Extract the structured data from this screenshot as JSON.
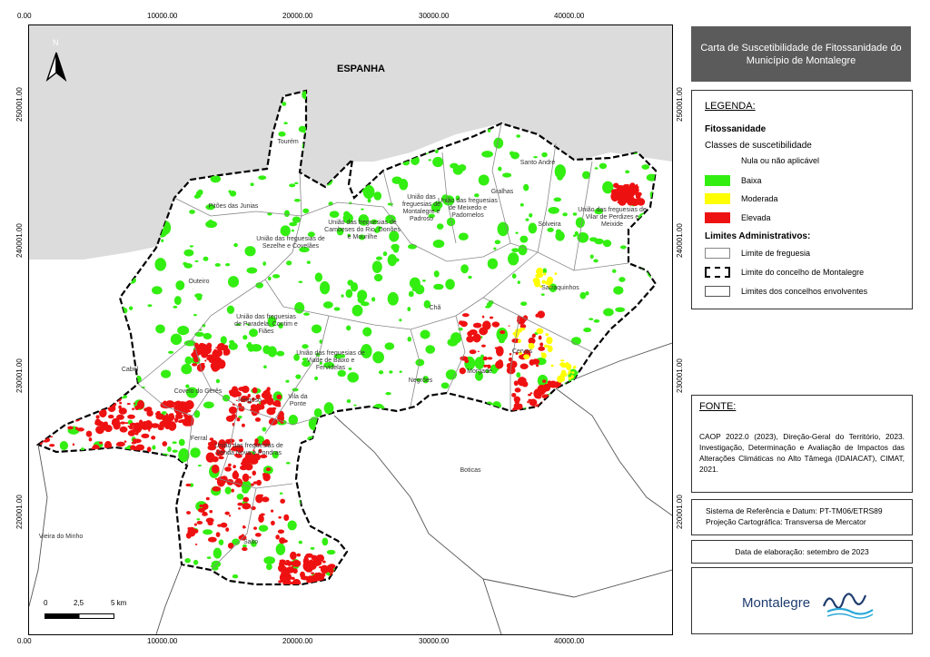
{
  "map": {
    "country_label": "ESPANHA",
    "north_label": "N",
    "x_ticks": [
      "0.00",
      "10000.00",
      "20000.00",
      "30000.00",
      "40000.00"
    ],
    "y_ticks": [
      "250001.00",
      "240001.00",
      "230001.00",
      "220001.00"
    ],
    "scale": {
      "labels": [
        "0",
        "2,5",
        "5 km"
      ]
    },
    "parishes": [
      "Tourém",
      "Pitões das Junias",
      "União das freguesias de Sezelhe e Covelães",
      "União das freguesias de Cambeses do Rio, Donões e Mourilhe",
      "União das freguesias de Montalegre e Padroso",
      "União das freguesias de Meixedo e Padornelos",
      "Gralhas",
      "Santo André",
      "Solveira",
      "União das freguesias de Vilar de Perdizes e Meixide",
      "Outeiro",
      "União das freguesias de Paradela, Contim e Fiães",
      "Sarraquinhos",
      "Chã",
      "Cervos",
      "União das freguesias de Viade de Baixo e Fervidelas",
      "Negrões",
      "Morgade",
      "Cabril",
      "Covelo do Gerês",
      "Reigoso",
      "Vila da Ponte",
      "Ferral",
      "União das freguesias de Venda Nova e Pondras",
      "Salto"
    ],
    "neighbours": [
      "Boticas",
      "Vieira do Minho"
    ]
  },
  "colors": {
    "baixa": "#33ee11",
    "moderada": "#ffff00",
    "elevada": "#ee1111",
    "spain": "#dcdcdc",
    "title_bg": "#5b5b5b"
  },
  "title": "Carta de Suscetibilidade de Fitossanidade do Município de Montalegre",
  "legend": {
    "title": "LEGENDA:",
    "section1": "Fitossanidade",
    "subtitle": "Classes de suscetibilidade",
    "nula": "Nula ou não aplicável",
    "items": [
      {
        "label": "Baixa"
      },
      {
        "label": "Moderada"
      },
      {
        "label": "Elevada"
      }
    ],
    "section2": "Limites Administrativos:",
    "limits": [
      {
        "label": "Limite de freguesia"
      },
      {
        "label": "Limite do concelho de Montalegre"
      },
      {
        "label": "Limites dos concelhos envolventes"
      }
    ]
  },
  "fonte": {
    "title": "FONTE:",
    "text": "CAOP 2022.0 (2023), Direção-Geral do Território, 2023. Investigação, Determinação e Avaliação de Impactos das Alterações Climáticas no Alto Tâmega (IDAIACAT), CIMAT, 2021."
  },
  "reference": {
    "line1": "Sistema de Referência e Datum: PT-TM06/ETRS89",
    "line2": "Projeção Cartográfica: Transversa de Mercator"
  },
  "date": "Data de elaboração: setembro de 2023",
  "logo": {
    "text": "Montalegre"
  }
}
